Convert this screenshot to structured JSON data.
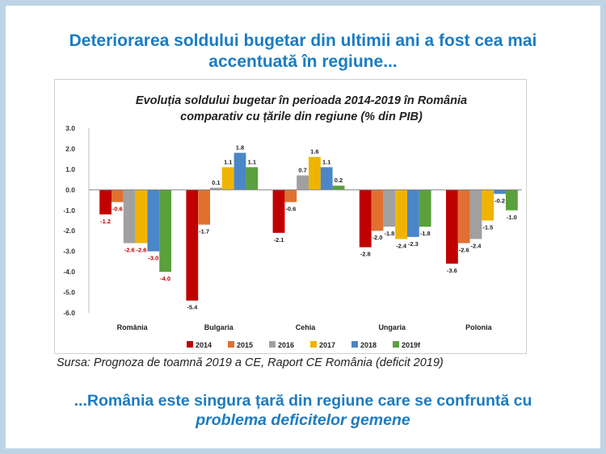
{
  "slide": {
    "headline_line1": "Deteriorarea soldului bugetar din ultimii ani a fost cea mai",
    "headline_line2": "accentuată în regiune...",
    "source": "Sursa: Prognoza de toamnă 2019 a CE, Raport CE România (deficit 2019)",
    "footer_line1": "...România este singura țară din regiune care se confruntă cu",
    "footer_line2": "problema deficitelor gemene"
  },
  "chart_data": {
    "type": "bar",
    "title_line1": "Evoluția soldului bugetar în perioada 2014-2019 în România",
    "title_line2": "comparativ cu țările din regiune (% din PIB)",
    "categories": [
      "România",
      "Bulgaria",
      "Cehia",
      "Ungaria",
      "Polonia"
    ],
    "ylim": [
      -6.0,
      3.0
    ],
    "yticks": [
      "3.0",
      "2.0",
      "1.0",
      "0.0",
      "-1.0",
      "-2.0",
      "-3.0",
      "-4.0",
      "-5.0",
      "-6.0"
    ],
    "grid": false,
    "legend_position": "bottom",
    "series": [
      {
        "name": "2014",
        "color": "#c00000",
        "values": [
          -1.2,
          -5.4,
          -2.1,
          -2.8,
          -3.6
        ],
        "labels": [
          "-1.2",
          "-5.4",
          "-2.1",
          "-2.8",
          "-3.6"
        ]
      },
      {
        "name": "2015",
        "color": "#e07030",
        "values": [
          -0.6,
          -1.7,
          -0.6,
          -2.0,
          -2.6
        ],
        "labels": [
          "-0.6",
          "-1.7",
          "-0.6",
          "-2.0",
          "-2.6"
        ]
      },
      {
        "name": "2016",
        "color": "#a0a0a0",
        "values": [
          -2.6,
          0.1,
          0.7,
          -1.8,
          -2.4
        ],
        "labels": [
          "-2.6",
          "0.1",
          "0.7",
          "-1.8",
          "-2.4"
        ]
      },
      {
        "name": "2017",
        "color": "#f0b400",
        "values": [
          -2.6,
          1.1,
          1.6,
          -2.4,
          -1.5
        ],
        "labels": [
          "-2.6",
          "1.1",
          "1.6",
          "-2.4",
          "-1.5"
        ]
      },
      {
        "name": "2018",
        "color": "#4a86c8",
        "values": [
          -3.0,
          1.8,
          1.1,
          -2.3,
          -0.2
        ],
        "labels": [
          "-3.0",
          "1.8",
          "1.1",
          "-2.3",
          "-0.2"
        ]
      },
      {
        "name": "2019f",
        "color": "#5aa03c",
        "values": [
          -4.0,
          1.1,
          0.2,
          -1.8,
          -1.0
        ],
        "labels": [
          "-4.0",
          "1.1",
          "0.2",
          "-1.8",
          "-1.0"
        ]
      }
    ]
  }
}
